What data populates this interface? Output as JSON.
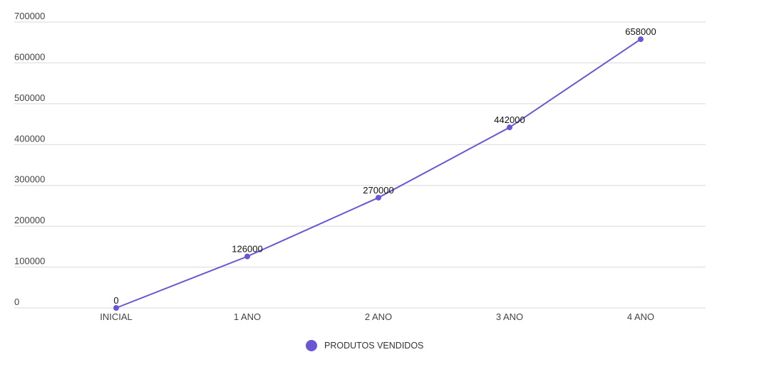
{
  "chart_data": {
    "type": "line",
    "categories": [
      "INICIAL",
      "1 ANO",
      "2 ANO",
      "3 ANO",
      "4 ANO"
    ],
    "series": [
      {
        "name": "PRODUTOS VENDIDOS",
        "values": [
          0,
          126000,
          270000,
          442000,
          658000
        ],
        "color": "#6a55d4"
      }
    ],
    "y_ticks": [
      0,
      100000,
      200000,
      300000,
      400000,
      500000,
      600000,
      700000
    ],
    "ylim": [
      0,
      700000
    ],
    "grid": true,
    "data_labels": true,
    "legend": "bottom-center"
  }
}
